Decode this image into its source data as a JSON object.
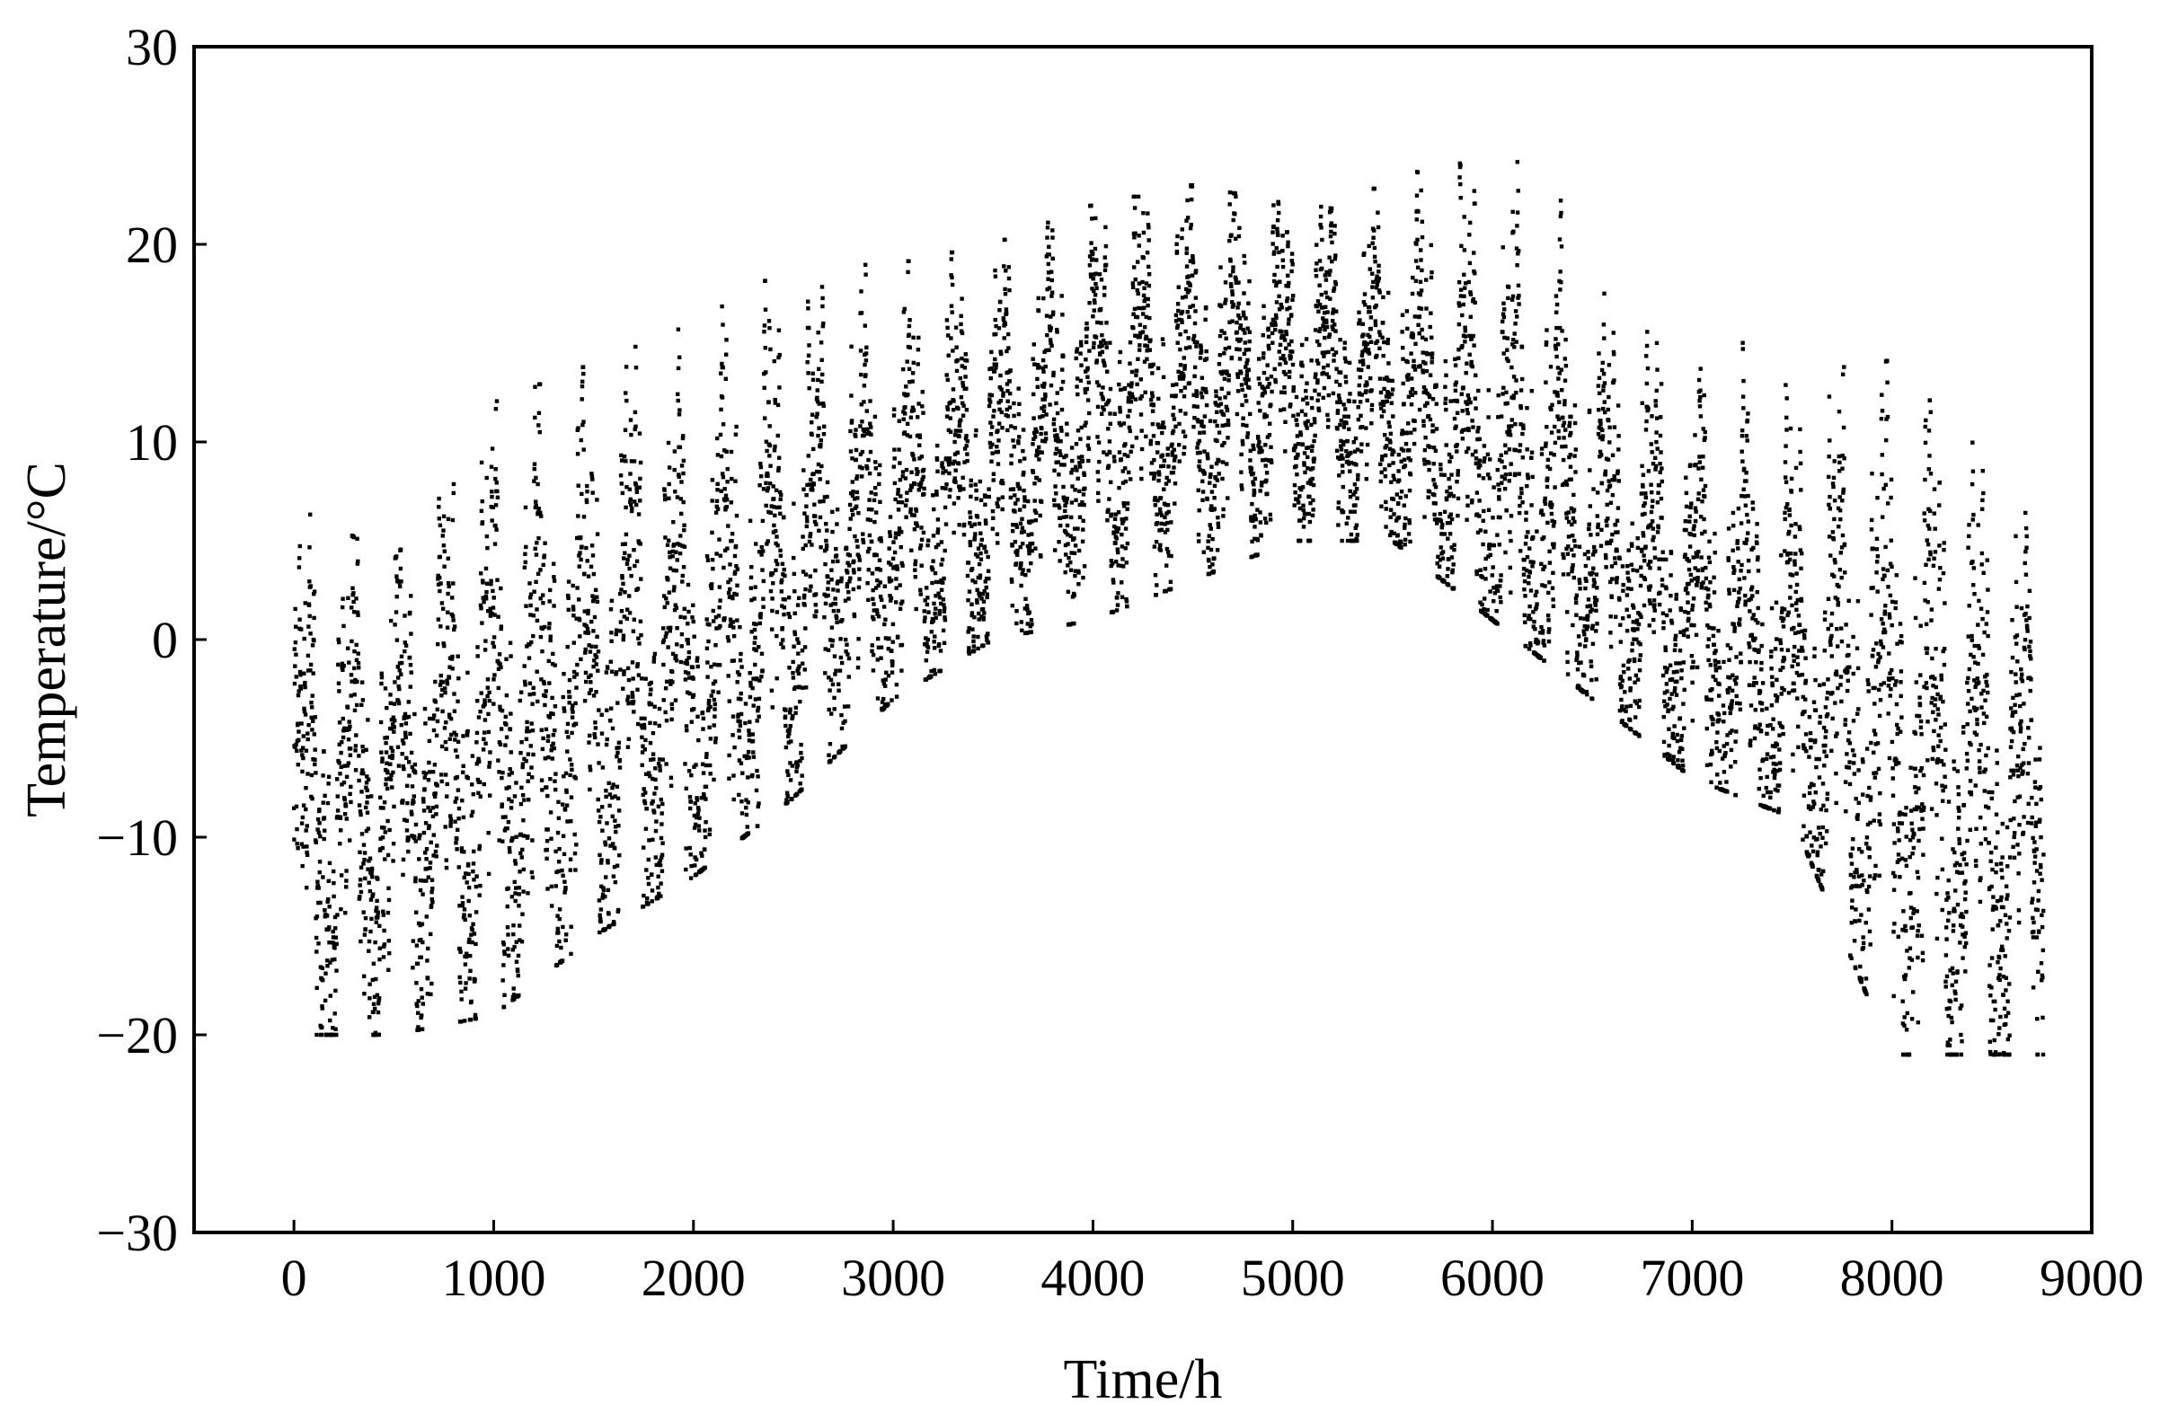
{
  "chart_data": {
    "type": "scatter",
    "title": "",
    "xlabel": "Time/h",
    "ylabel": "Temperature/°C",
    "xlim": [
      -500,
      9000
    ],
    "ylim": [
      -30,
      30
    ],
    "grid": false,
    "legend": "none",
    "marker_color": "#000000",
    "x_ticks": [
      0,
      1000,
      2000,
      3000,
      4000,
      5000,
      6000,
      7000,
      8000,
      9000
    ],
    "x_tick_labels": [
      "0",
      "1000",
      "2000",
      "3000",
      "4000",
      "5000",
      "6000",
      "7000",
      "8000",
      "9000"
    ],
    "y_ticks": [
      30,
      20,
      10,
      0,
      -10,
      -20,
      -30
    ],
    "y_tick_labels": [
      "30",
      "20",
      "10",
      "0",
      "−10",
      "−20",
      "−30"
    ],
    "series": [
      {
        "n_points": 8760,
        "x_start": 0,
        "x_end": 8760,
        "x_step": 1,
        "envelope": {
          "x": [
            0,
            500,
            1000,
            1500,
            2000,
            2500,
            3000,
            3500,
            4000,
            4500,
            5000,
            5500,
            6000,
            6500,
            7000,
            7500,
            8000,
            8500,
            8760
          ],
          "y_max": [
            7,
            4,
            12,
            14,
            16,
            19,
            19,
            20,
            22,
            23,
            22,
            23,
            27,
            20,
            14,
            16,
            14,
            9,
            5
          ],
          "y_min": [
            -20,
            -20,
            -19,
            -15,
            -12,
            -8,
            -3,
            0,
            1,
            3,
            5,
            5,
            1,
            -3,
            -7,
            -9,
            -21,
            -21,
            -21
          ]
        },
        "trend": {
          "x": [
            0,
            500,
            1000,
            1500,
            2000,
            2500,
            3000,
            3500,
            4000,
            4500,
            5000,
            5500,
            6000,
            6500,
            7000,
            7500,
            8000,
            8500,
            8760
          ],
          "y": [
            -10,
            -8,
            -6,
            -3,
            -2,
            2,
            5,
            8,
            11,
            12,
            13,
            12,
            8,
            5,
            1,
            -3,
            -6,
            -9,
            -10
          ]
        }
      }
    ]
  }
}
